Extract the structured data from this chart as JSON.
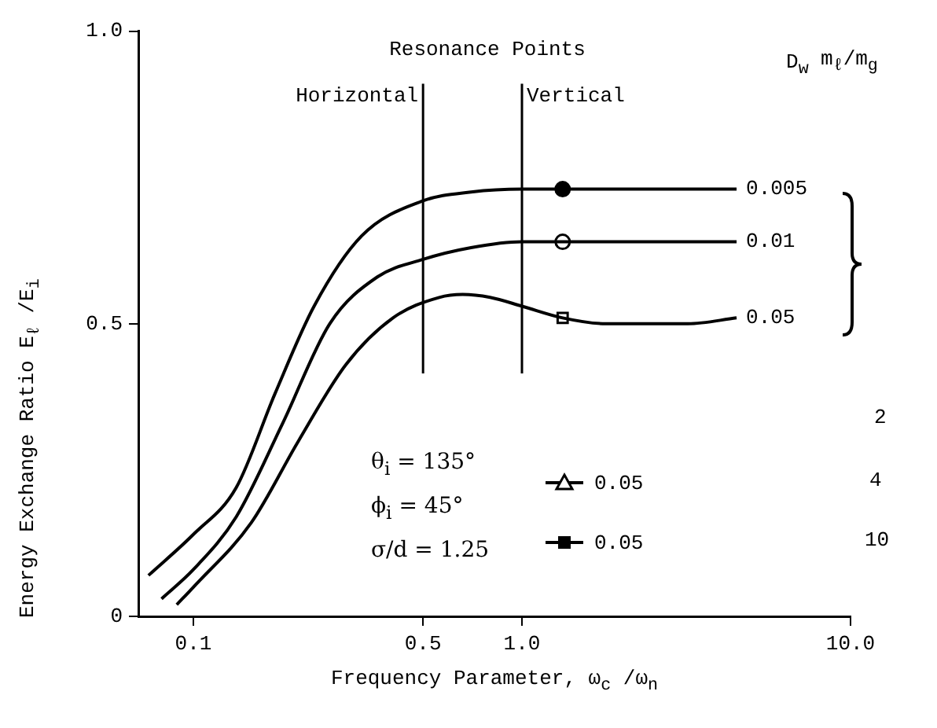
{
  "chart_data": {
    "type": "line",
    "xlabel": "Frequency Parameter, ω$_{c}$ /ω$_{n}$",
    "ylabel": "Energy Exchange Ratio E$_{ℓ}$ /E$_{i}$",
    "log": "x",
    "xlim": [
      0.068,
      10
    ],
    "xticks": [
      0.1,
      0.5,
      {
        "value": 1,
        "label": "1.0"
      },
      {
        "value": 10,
        "label": "10.0"
      }
    ],
    "ylim": [
      0,
      1
    ],
    "yticks": [
      0,
      0.5,
      {
        "value": 1,
        "label": "1.0"
      }
    ],
    "grid": false,
    "legend": "bottom right",
    "marker": "none",
    "series": [
      {
        "name": "0.005",
        "color": "#000000",
        "x": [
          0.073,
          0.1,
          0.135,
          0.177,
          0.233,
          0.325,
          0.5,
          0.7,
          1.0,
          1.33,
          2.0,
          3.0,
          4.5
        ],
        "values": [
          0.07,
          0.14,
          0.22,
          0.38,
          0.53,
          0.65,
          0.71,
          0.725,
          0.73,
          0.73,
          0.73,
          0.73,
          0.73
        ]
      },
      {
        "name": "0.01",
        "color": "#000000",
        "x": [
          0.08,
          0.1,
          0.135,
          0.187,
          0.26,
          0.363,
          0.5,
          0.7,
          1.0,
          1.33,
          2.0,
          3.0,
          4.5
        ],
        "values": [
          0.03,
          0.08,
          0.17,
          0.33,
          0.5,
          0.58,
          0.61,
          0.63,
          0.64,
          0.64,
          0.64,
          0.64,
          0.64
        ]
      },
      {
        "name": "0.05",
        "color": "#000000",
        "x": [
          0.089,
          0.1,
          0.15,
          0.209,
          0.291,
          0.405,
          0.56,
          0.66,
          0.8,
          1.0,
          1.33,
          1.8,
          2.4,
          3.2,
          4.5
        ],
        "values": [
          0.02,
          0.05,
          0.16,
          0.3,
          0.43,
          0.51,
          0.545,
          0.55,
          0.545,
          0.53,
          0.51,
          0.5,
          0.5,
          0.5,
          0.51
        ]
      },
      {
        "type": "scatter",
        "x": [
          1.33
        ],
        "values": [
          0.73
        ],
        "marker": "circle",
        "color": "#000000"
      },
      {
        "type": "scatter",
        "x": [
          1.33
        ],
        "values": [
          0.64
        ],
        "marker": "circle",
        "color": "#ffffff"
      },
      {
        "type": "scatter",
        "x": [
          1.33
        ],
        "values": [
          0.51
        ],
        "marker": "square",
        "color": "#ffffff"
      },
      {
        "name": "0.05",
        "type": "line",
        "marker": "triangle",
        "color": "#000000"
      },
      {
        "name": "0.05",
        "type": "line",
        "marker": "square",
        "color": "#000000"
      }
    ],
    "ref_lines": [
      {
        "axis": "x",
        "value": 0.5,
        "label": "Horizontal"
      },
      {
        "axis": "x",
        "value": 1.0,
        "label": "Vertical"
      }
    ],
    "annotations": [
      "Resonance Points",
      "D$_{w}$",
      "m$_{ℓ}$/m$_{g}$",
      "2",
      "θ$_{i}$ = 135°",
      "ϕ$_{i}$ = 45°",
      "σ/d = 1.25",
      "4",
      "10"
    ]
  }
}
